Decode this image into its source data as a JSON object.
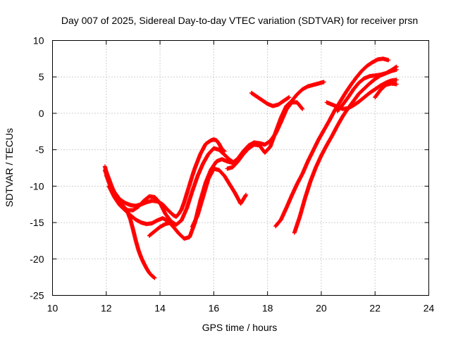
{
  "chart_data": {
    "type": "scatter",
    "title": "Day 007 of 2025, Sidereal Day-to-day VTEC variation (SDTVAR) for receiver prsn",
    "xlabel": "GPS time / hours",
    "ylabel": "SDTVAR / TECUs",
    "xlim": [
      10,
      24
    ],
    "ylim": [
      -25,
      10
    ],
    "xticks": [
      "10",
      "12",
      "14",
      "16",
      "18",
      "20",
      "22",
      "24"
    ],
    "yticks": [
      "-25",
      "-20",
      "-15",
      "-10",
      "-5",
      "0",
      "5",
      "10"
    ],
    "grid": true,
    "marker": "+",
    "color": "#ff0000",
    "series": [
      {
        "x": [
          11.95,
          12.0,
          12.1,
          12.2,
          12.3,
          12.4,
          12.5,
          12.6,
          12.7,
          12.8,
          12.9,
          13.0,
          13.1,
          13.2,
          13.3,
          13.4,
          13.5,
          13.6,
          13.7,
          13.8
        ],
        "y": [
          -7.3,
          -8.0,
          -9.0,
          -10.0,
          -11.0,
          -11.8,
          -12.2,
          -12.6,
          -13.0,
          -13.6,
          -14.6,
          -16.0,
          -17.5,
          -18.8,
          -19.8,
          -20.6,
          -21.3,
          -21.9,
          -22.3,
          -22.6
        ]
      },
      {
        "x": [
          11.95,
          12.1,
          12.3,
          12.5,
          12.7,
          12.9,
          13.1,
          13.3,
          13.5,
          13.7,
          13.9,
          14.1,
          14.3,
          14.5,
          14.6,
          14.7,
          14.8,
          14.9,
          15.0,
          15.1,
          15.2,
          15.3,
          15.5,
          15.7,
          15.9,
          16.0,
          16.1,
          16.2,
          16.3,
          16.4
        ],
        "y": [
          -7.8,
          -9.3,
          -10.8,
          -11.8,
          -12.3,
          -12.6,
          -12.7,
          -12.5,
          -12.2,
          -12.0,
          -12.1,
          -12.5,
          -13.3,
          -14.0,
          -14.2,
          -13.8,
          -13.2,
          -12.2,
          -11.0,
          -9.8,
          -8.6,
          -7.5,
          -5.6,
          -4.2,
          -3.7,
          -3.6,
          -3.7,
          -4.2,
          -4.9,
          -5.2
        ]
      },
      {
        "x": [
          12.0,
          12.2,
          12.4,
          12.6,
          12.8,
          13.0,
          13.2,
          13.4,
          13.6,
          13.8,
          14.0,
          14.2,
          14.4,
          14.6,
          14.8,
          15.0,
          15.2,
          15.4,
          15.6,
          15.8,
          16.0,
          16.2,
          16.4,
          16.6,
          16.8
        ],
        "y": [
          -8.5,
          -10.5,
          -11.8,
          -12.8,
          -13.3,
          -13.3,
          -12.8,
          -12.0,
          -11.4,
          -11.5,
          -12.3,
          -13.8,
          -14.8,
          -15.3,
          -14.7,
          -13.0,
          -10.7,
          -8.6,
          -6.9,
          -5.6,
          -4.8,
          -5.0,
          -5.7,
          -6.4,
          -6.9
        ]
      },
      {
        "x": [
          12.1,
          12.3,
          12.5,
          12.7,
          12.9,
          13.1,
          13.3,
          13.5,
          13.7,
          13.9,
          14.1,
          14.3,
          14.5,
          14.7,
          14.9,
          15.1,
          15.3,
          15.5,
          15.7,
          15.9,
          16.1,
          16.3,
          16.5,
          16.7,
          16.9,
          17.1,
          17.3,
          17.5,
          17.7,
          17.9,
          18.1,
          18.3,
          18.5,
          18.7,
          18.9,
          19.1,
          19.3
        ],
        "y": [
          -10.0,
          -11.5,
          -12.6,
          -13.3,
          -14.0,
          -14.6,
          -15.0,
          -15.2,
          -15.1,
          -14.7,
          -14.4,
          -14.8,
          -15.6,
          -16.5,
          -17.2,
          -17.0,
          -15.0,
          -12.0,
          -9.5,
          -7.7,
          -6.6,
          -6.3,
          -6.6,
          -6.8,
          -6.2,
          -5.2,
          -4.4,
          -4.0,
          -4.1,
          -4.3,
          -3.8,
          -2.8,
          -1.2,
          0.5,
          1.5,
          1.5,
          0.6
        ]
      },
      {
        "x": [
          13.6,
          13.8,
          14.0,
          14.2,
          14.4
        ],
        "y": [
          -16.8,
          -16.2,
          -15.6,
          -15.2,
          -15.0
        ]
      },
      {
        "x": [
          15.2,
          15.4,
          15.6,
          15.8,
          16.0,
          16.2,
          16.4,
          16.6,
          16.8,
          17.0,
          17.2
        ],
        "y": [
          -15.6,
          -14.0,
          -11.5,
          -9.0,
          -7.6,
          -7.8,
          -8.6,
          -9.8,
          -11.0,
          -12.4,
          -11.2
        ]
      },
      {
        "x": [
          16.5,
          16.7,
          16.9,
          17.1,
          17.3,
          17.5,
          17.7,
          17.9,
          18.1,
          18.3,
          18.5,
          18.7,
          18.9,
          19.1,
          19.3,
          19.5,
          19.7,
          19.9,
          20.1
        ],
        "y": [
          -7.6,
          -7.4,
          -6.6,
          -5.6,
          -4.8,
          -4.3,
          -4.4,
          -5.4,
          -4.6,
          -2.6,
          -0.6,
          1.0,
          1.7,
          2.6,
          3.3,
          3.7,
          3.9,
          4.1,
          4.3
        ]
      },
      {
        "x": [
          17.4,
          17.6,
          17.8,
          18.0,
          18.2,
          18.4,
          18.6,
          18.8
        ],
        "y": [
          2.8,
          2.3,
          1.8,
          1.3,
          1.0,
          1.2,
          1.7,
          2.2
        ]
      },
      {
        "x": [
          18.3,
          18.5,
          18.7,
          18.9,
          19.1,
          19.3,
          19.5,
          19.7,
          19.9,
          20.1,
          20.3,
          20.5,
          20.7,
          20.9,
          21.1,
          21.3,
          21.5,
          21.7,
          21.9,
          22.1,
          22.3,
          22.5
        ],
        "y": [
          -15.5,
          -14.6,
          -13.0,
          -11.3,
          -9.7,
          -8.3,
          -6.6,
          -5.1,
          -3.6,
          -2.3,
          -1.0,
          0.4,
          1.6,
          2.8,
          3.9,
          4.9,
          5.8,
          6.5,
          7.0,
          7.4,
          7.5,
          7.3
        ]
      },
      {
        "x": [
          19.0,
          19.2,
          19.4,
          19.6,
          19.8,
          20.0,
          20.2,
          20.4,
          20.6,
          20.8,
          21.0,
          21.2,
          21.4,
          21.6,
          21.8,
          22.0,
          22.2,
          22.4,
          22.6,
          22.8
        ],
        "y": [
          -16.4,
          -14.2,
          -11.6,
          -9.3,
          -7.4,
          -5.8,
          -4.4,
          -3.1,
          -1.7,
          -0.4,
          0.7,
          1.7,
          2.7,
          3.4,
          4.1,
          4.7,
          5.2,
          5.5,
          5.8,
          6.0
        ]
      },
      {
        "x": [
          20.2,
          20.4,
          20.6,
          20.8,
          21.0,
          21.2,
          21.4,
          21.6,
          21.8,
          22.0,
          22.2,
          22.4,
          22.6,
          22.8
        ],
        "y": [
          1.5,
          1.2,
          0.9,
          0.6,
          0.7,
          1.1,
          1.6,
          2.2,
          2.8,
          3.3,
          3.8,
          4.2,
          4.5,
          4.6
        ]
      },
      {
        "x": [
          20.6,
          20.8,
          21.0,
          21.2,
          21.4,
          21.6,
          21.8,
          22.0,
          22.2,
          22.4,
          22.6,
          22.8
        ],
        "y": [
          0.3,
          1.2,
          2.2,
          3.3,
          4.2,
          4.8,
          5.1,
          5.2,
          5.3,
          5.5,
          5.9,
          6.4
        ]
      },
      {
        "x": [
          22.0,
          22.2,
          22.4,
          22.6,
          22.8
        ],
        "y": [
          2.2,
          3.2,
          3.9,
          4.1,
          4.0
        ]
      }
    ]
  }
}
